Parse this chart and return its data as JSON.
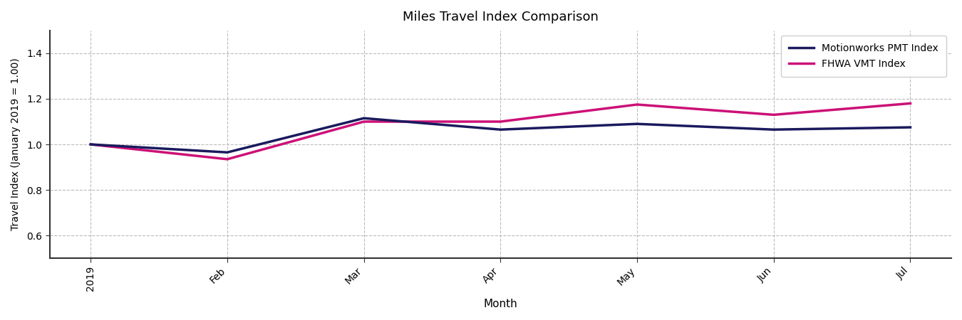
{
  "title": "Miles Travel Index Comparison",
  "xlabel": "Month",
  "ylabel": "Travel Index (January 2019 = 1.00)",
  "x_labels": [
    "2019",
    "Feb",
    "Mar",
    "Apr",
    "May",
    "Jun",
    "Jul"
  ],
  "x_values": [
    0,
    1,
    2,
    3,
    4,
    5,
    6
  ],
  "pmt_values": [
    1.0,
    0.965,
    1.115,
    1.065,
    1.09,
    1.065,
    1.075
  ],
  "vmt_values": [
    1.0,
    0.935,
    1.1,
    1.1,
    1.175,
    1.13,
    1.18
  ],
  "pmt_color": "#1a1a5e",
  "vmt_color": "#cc1177",
  "pmt_label": "Motionworks PMT Index",
  "vmt_label": "FHWA VMT Index",
  "ylim": [
    0.5,
    1.5
  ],
  "yticks": [
    0.6,
    0.8,
    1.0,
    1.2,
    1.4
  ],
  "line_width": 2.5,
  "grid_color": "#bbbbbb",
  "bg_color": "#ffffff",
  "legend_fontsize": 10,
  "title_fontsize": 13
}
